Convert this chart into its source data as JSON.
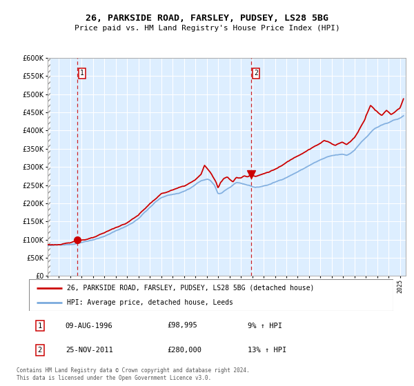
{
  "title1": "26, PARKSIDE ROAD, FARSLEY, PUDSEY, LS28 5BG",
  "title2": "Price paid vs. HM Land Registry's House Price Index (HPI)",
  "legend_line1": "26, PARKSIDE ROAD, FARSLEY, PUDSEY, LS28 5BG (detached house)",
  "legend_line2": "HPI: Average price, detached house, Leeds",
  "footnote": "Contains HM Land Registry data © Crown copyright and database right 2024.\nThis data is licensed under the Open Government Licence v3.0.",
  "sale1_date": "09-AUG-1996",
  "sale1_price": "£98,995",
  "sale1_hpi": "9% ↑ HPI",
  "sale1_year": 1996.6,
  "sale1_value": 98995,
  "sale2_date": "25-NOV-2011",
  "sale2_price": "£280,000",
  "sale2_hpi": "13% ↑ HPI",
  "sale2_year": 2011.9,
  "sale2_value": 280000,
  "hpi_color": "#7aaadd",
  "price_color": "#cc0000",
  "bg_color": "#ddeeff",
  "grid_color": "#ffffff",
  "ylim": [
    0,
    600000
  ],
  "yticks": [
    0,
    50000,
    100000,
    150000,
    200000,
    250000,
    300000,
    350000,
    400000,
    450000,
    500000,
    550000,
    600000
  ]
}
